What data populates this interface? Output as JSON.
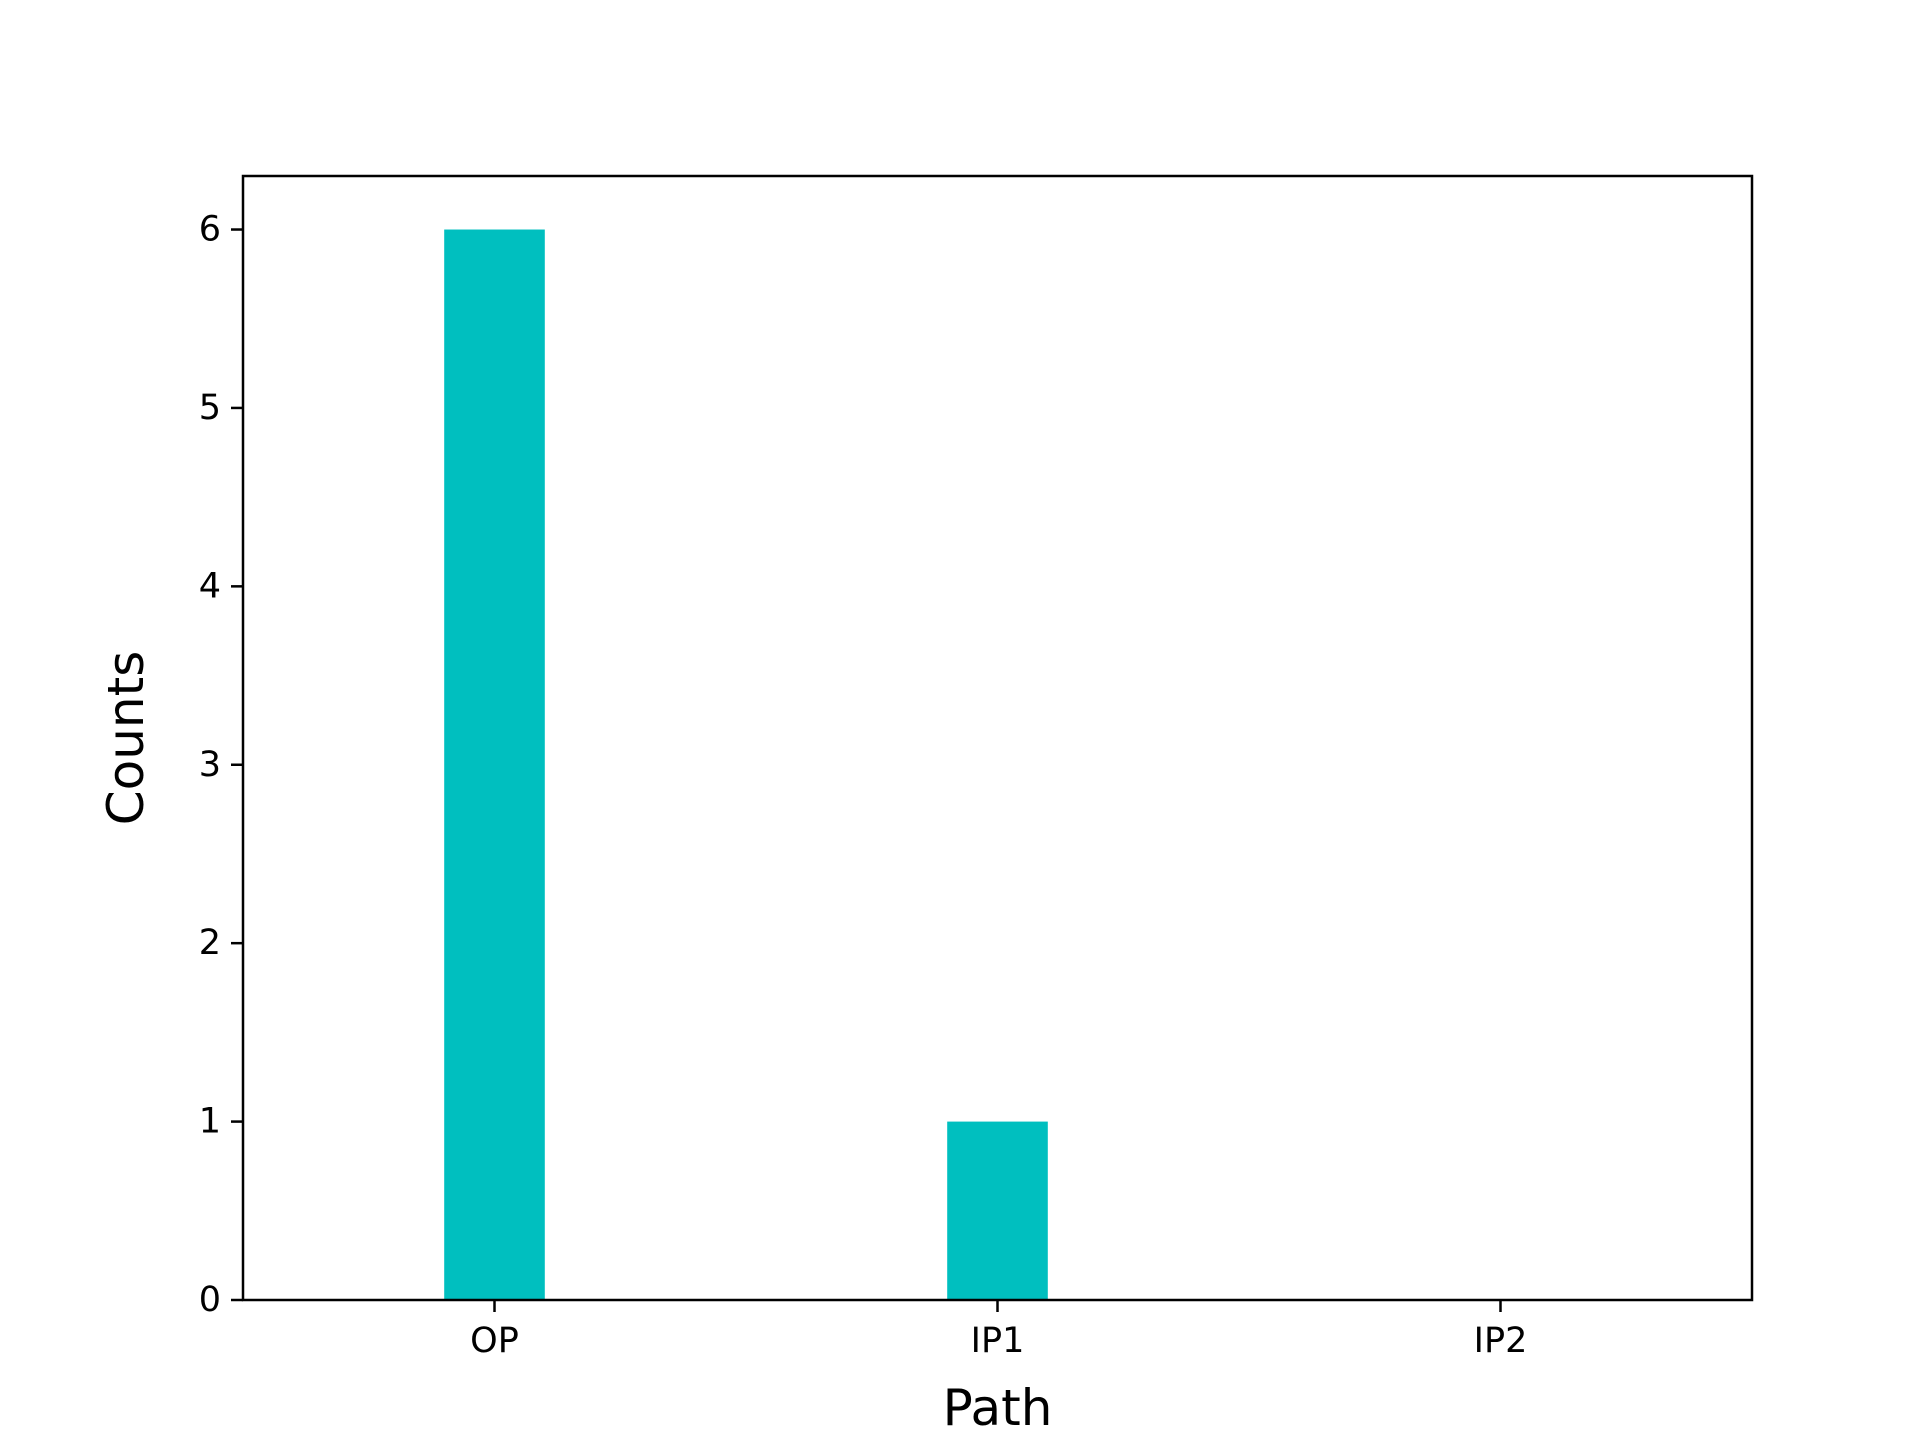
{
  "chart_data": {
    "type": "bar",
    "title": "",
    "xlabel": "Path",
    "ylabel": "Counts",
    "categories": [
      "OP",
      "IP1",
      "IP2"
    ],
    "values": [
      6,
      1,
      0
    ],
    "ylim": [
      0,
      6.3
    ],
    "yticks": [
      0,
      1,
      2,
      3,
      4,
      5,
      6
    ],
    "grid": false,
    "legend": "none",
    "bar_color": "#00bfbf",
    "axis_color": "#000000",
    "background": "#ffffff"
  }
}
